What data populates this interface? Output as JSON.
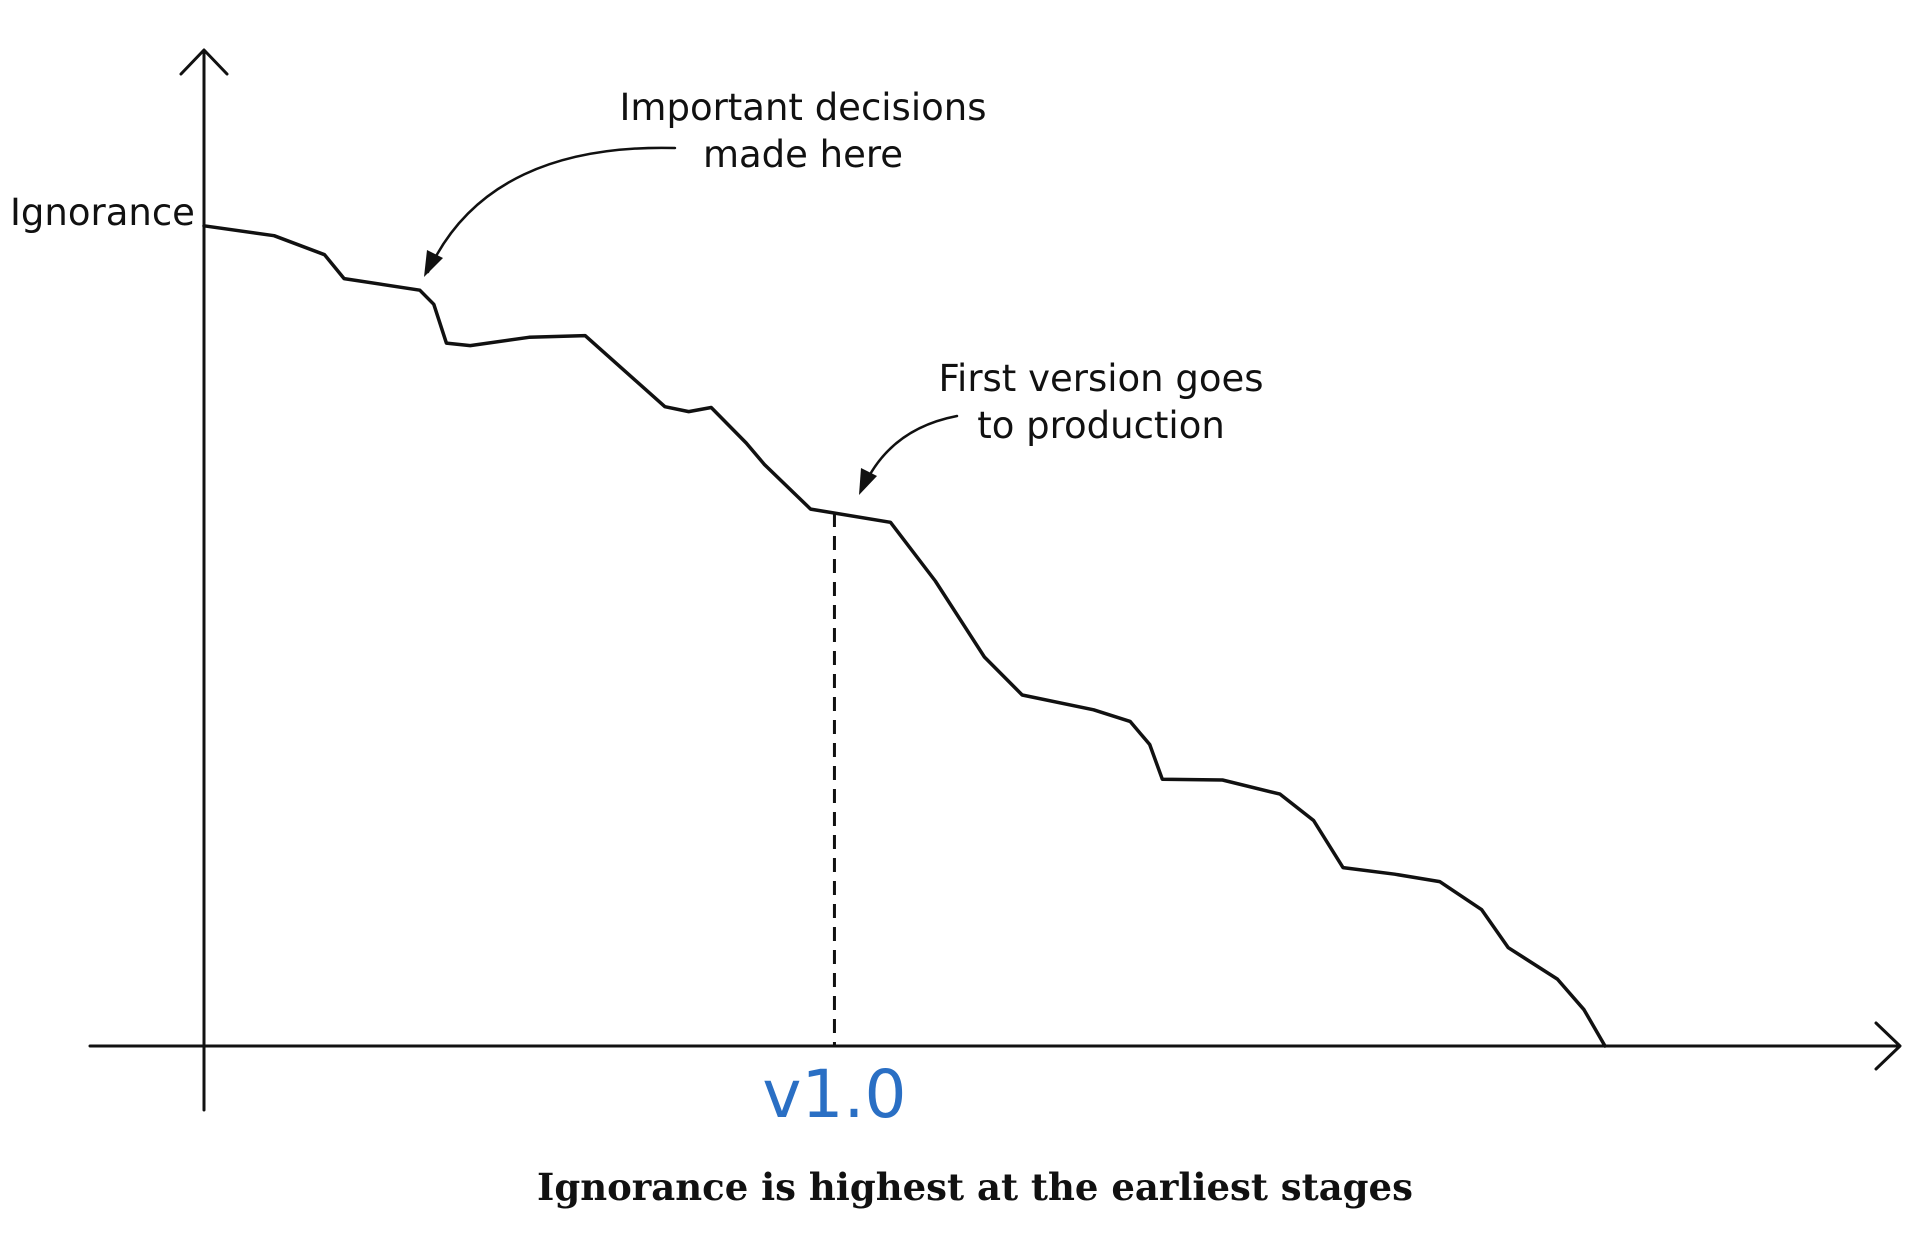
{
  "chart_data": {
    "type": "line",
    "ylabel": "Ignorance",
    "xlabel": "",
    "title": "",
    "grid": false,
    "legend": "none",
    "marker": {
      "label": "v1.0",
      "x": 45,
      "color": "#2a6fc4"
    },
    "annotations": [
      {
        "text": [
          "Important decisions",
          "made here"
        ],
        "points_to_x": 15.4
      },
      {
        "text": [
          "First version goes",
          "to production"
        ],
        "points_to_x": 47
      }
    ],
    "xlim": [
      0,
      100
    ],
    "ylim": [
      0,
      100
    ],
    "series": [
      {
        "points": [
          [
            0,
            99.3
          ],
          [
            5,
            98.1
          ],
          [
            8.6,
            95.8
          ],
          [
            10,
            92.9
          ],
          [
            15.4,
            91.5
          ],
          [
            16.4,
            89.8
          ],
          [
            17.3,
            85.1
          ],
          [
            19,
            84.8
          ],
          [
            23.2,
            85.8
          ],
          [
            27.2,
            86.0
          ],
          [
            32.9,
            77.4
          ],
          [
            34.6,
            76.8
          ],
          [
            36.2,
            77.3
          ],
          [
            38.7,
            73.0
          ],
          [
            40.0,
            70.4
          ],
          [
            43.3,
            65.0
          ],
          [
            49.0,
            63.4
          ],
          [
            52.2,
            56.3
          ],
          [
            55.7,
            47.1
          ],
          [
            58.4,
            42.5
          ],
          [
            63.5,
            40.7
          ],
          [
            66.1,
            39.3
          ],
          [
            67.5,
            36.5
          ],
          [
            68.4,
            32.3
          ],
          [
            72.7,
            32.2
          ],
          [
            76.8,
            30.5
          ],
          [
            79.2,
            27.3
          ],
          [
            81.3,
            21.6
          ],
          [
            85.0,
            20.8
          ],
          [
            88.2,
            19.9
          ],
          [
            91.2,
            16.5
          ],
          [
            93.1,
            11.9
          ],
          [
            96.6,
            8.1
          ],
          [
            98.5,
            4.4
          ],
          [
            100,
            0
          ]
        ]
      }
    ]
  }
}
